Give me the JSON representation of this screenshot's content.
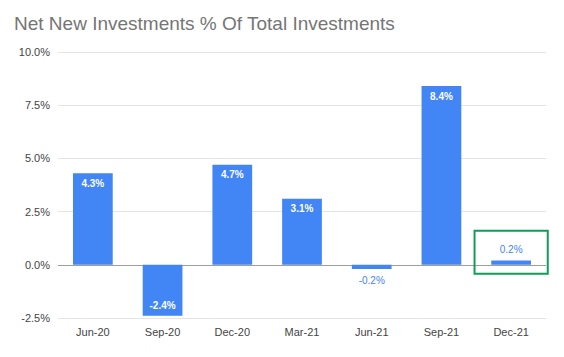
{
  "chart_data": {
    "type": "bar",
    "title": "Net New Investments % Of Total Investments",
    "categories": [
      "Jun-20",
      "Sep-20",
      "Dec-20",
      "Mar-21",
      "Jun-21",
      "Sep-21",
      "Dec-21"
    ],
    "values": [
      4.3,
      -2.4,
      4.7,
      3.1,
      -0.2,
      8.4,
      0.2
    ],
    "value_labels": [
      "4.3%",
      "-2.4%",
      "4.7%",
      "3.1%",
      "-0.2%",
      "8.4%",
      "0.2%"
    ],
    "color": "#4285f4",
    "ylim": [
      -2.5,
      10
    ],
    "yticks": [
      {
        "value": -2.5,
        "label": "-2.5%"
      },
      {
        "value": 0,
        "label": "0.0%"
      },
      {
        "value": 2.5,
        "label": "2.5%"
      },
      {
        "value": 5,
        "label": "5.0%"
      },
      {
        "value": 7.5,
        "label": "7.5%"
      },
      {
        "value": 10,
        "label": "10.0%"
      }
    ],
    "grid": true,
    "data_labels": true
  }
}
